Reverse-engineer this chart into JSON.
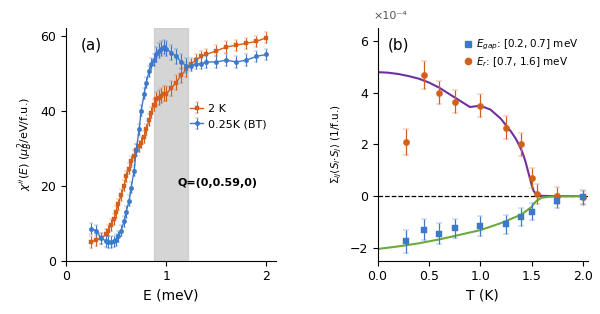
{
  "panel_a": {
    "label": "(a)",
    "xlabel": "E (meV)",
    "xlim": [
      0,
      2.1
    ],
    "ylim": [
      0,
      62
    ],
    "yticks": [
      0,
      20,
      40,
      60
    ],
    "xticks": [
      0,
      1,
      2
    ],
    "gray_band": [
      0.88,
      1.22
    ],
    "legend_entries": [
      "0.25K (BT)",
      "2 K"
    ],
    "color_bt": "#3E78C8",
    "color_2k": "#D2601A",
    "Q_label": "Q=(0,0.59,0)",
    "bt_data": {
      "x": [
        0.25,
        0.3,
        0.35,
        0.4,
        0.42,
        0.45,
        0.48,
        0.5,
        0.52,
        0.55,
        0.58,
        0.6,
        0.63,
        0.65,
        0.68,
        0.7,
        0.73,
        0.75,
        0.78,
        0.8,
        0.83,
        0.85,
        0.88,
        0.9,
        0.93,
        0.95,
        0.98,
        1.0,
        1.05,
        1.1,
        1.15,
        1.2,
        1.25,
        1.3,
        1.35,
        1.4,
        1.5,
        1.6,
        1.7,
        1.8,
        1.9,
        2.0
      ],
      "y": [
        8.5,
        8.0,
        6.0,
        5.2,
        5.0,
        5.0,
        5.2,
        5.5,
        6.5,
        8.0,
        10.5,
        13.0,
        16.0,
        19.5,
        24.0,
        29.5,
        35.0,
        40.0,
        44.5,
        47.5,
        50.5,
        52.5,
        53.5,
        55.0,
        56.0,
        56.5,
        57.0,
        56.5,
        55.5,
        54.5,
        53.0,
        52.0,
        52.0,
        52.5,
        52.5,
        53.0,
        53.0,
        53.5,
        53.0,
        53.5,
        54.5,
        55.0
      ],
      "yerr": [
        1.5,
        1.5,
        1.5,
        1.5,
        1.5,
        1.5,
        1.5,
        1.5,
        1.5,
        1.5,
        1.5,
        1.5,
        1.5,
        1.5,
        1.5,
        1.5,
        1.5,
        1.5,
        1.5,
        1.5,
        1.5,
        1.5,
        1.5,
        2.0,
        2.0,
        2.0,
        2.0,
        2.0,
        2.0,
        2.0,
        2.0,
        2.0,
        1.5,
        1.5,
        1.5,
        1.5,
        1.5,
        1.5,
        1.5,
        1.5,
        1.5,
        1.5
      ]
    },
    "twok_data": {
      "x": [
        0.25,
        0.3,
        0.35,
        0.4,
        0.42,
        0.45,
        0.48,
        0.5,
        0.52,
        0.55,
        0.58,
        0.6,
        0.63,
        0.65,
        0.68,
        0.7,
        0.73,
        0.75,
        0.78,
        0.8,
        0.83,
        0.85,
        0.88,
        0.9,
        0.93,
        0.95,
        0.98,
        1.0,
        1.05,
        1.1,
        1.15,
        1.2,
        1.25,
        1.3,
        1.35,
        1.4,
        1.5,
        1.6,
        1.7,
        1.8,
        1.9,
        2.0
      ],
      "y": [
        5.0,
        5.5,
        6.0,
        7.0,
        8.0,
        9.5,
        11.0,
        13.0,
        15.0,
        17.5,
        20.0,
        22.5,
        24.5,
        26.5,
        28.0,
        29.5,
        30.5,
        31.5,
        33.0,
        35.0,
        37.5,
        39.5,
        41.5,
        43.0,
        43.5,
        44.0,
        44.5,
        44.5,
        46.0,
        47.5,
        49.5,
        51.0,
        52.5,
        53.5,
        54.5,
        55.0,
        56.0,
        57.0,
        57.5,
        58.0,
        58.5,
        59.5
      ],
      "yerr": [
        1.5,
        1.5,
        1.5,
        1.5,
        1.5,
        1.5,
        1.5,
        1.5,
        1.5,
        1.5,
        1.5,
        1.5,
        1.5,
        1.5,
        1.5,
        1.5,
        1.5,
        1.5,
        1.5,
        1.5,
        1.5,
        1.5,
        1.5,
        2.0,
        2.0,
        2.0,
        2.0,
        2.0,
        2.0,
        2.0,
        2.0,
        2.0,
        1.5,
        1.5,
        1.5,
        1.5,
        1.5,
        1.5,
        1.5,
        1.5,
        1.5,
        1.5
      ]
    }
  },
  "panel_b": {
    "label": "(b)",
    "xlabel": "T (K)",
    "xlim": [
      0,
      2.05
    ],
    "ylim": [
      -2.5,
      6.5
    ],
    "yticks": [
      -2,
      0,
      2,
      4,
      6
    ],
    "xticks": [
      0,
      0.5,
      1.0,
      1.5,
      2.0
    ],
    "scale_label": "×10⁻⁴",
    "color_orange": "#D2601A",
    "color_blue": "#3E78C8",
    "color_fit_purple": "#7030A0",
    "color_fit_green": "#6AAB3C",
    "orange_data": {
      "x": [
        0.28,
        0.45,
        0.6,
        0.75,
        1.0,
        1.25,
        1.4,
        1.5,
        1.55,
        1.75,
        2.0
      ],
      "y": [
        2.1,
        4.7,
        4.0,
        3.65,
        3.5,
        2.65,
        2.0,
        0.7,
        0.08,
        0.02,
        -0.05
      ],
      "yerr": [
        0.5,
        0.55,
        0.45,
        0.45,
        0.45,
        0.45,
        0.45,
        0.4,
        0.38,
        0.32,
        0.3
      ]
    },
    "blue_data": {
      "x": [
        0.28,
        0.45,
        0.6,
        0.75,
        1.0,
        1.25,
        1.4,
        1.5,
        1.75,
        2.0
      ],
      "y": [
        -1.75,
        -1.3,
        -1.45,
        -1.25,
        -1.15,
        -1.1,
        -0.8,
        -0.6,
        -0.2,
        -0.05
      ],
      "yerr": [
        0.45,
        0.42,
        0.4,
        0.38,
        0.38,
        0.38,
        0.35,
        0.32,
        0.28,
        0.25
      ]
    },
    "fit_purple_x": [
      0.0,
      0.1,
      0.2,
      0.3,
      0.4,
      0.5,
      0.6,
      0.7,
      0.8,
      0.9,
      1.0,
      1.1,
      1.2,
      1.3,
      1.35,
      1.4,
      1.42,
      1.44,
      1.46,
      1.48,
      1.5,
      1.52,
      1.55,
      1.6,
      1.7,
      1.8,
      1.9,
      2.0
    ],
    "fit_purple_y": [
      4.8,
      4.78,
      4.73,
      4.65,
      4.55,
      4.4,
      4.2,
      3.95,
      3.7,
      3.45,
      3.5,
      3.35,
      3.0,
      2.5,
      2.2,
      1.8,
      1.6,
      1.35,
      1.05,
      0.75,
      0.45,
      0.2,
      0.05,
      0.01,
      0.0,
      0.0,
      0.0,
      0.0
    ],
    "fit_green_x": [
      0.0,
      0.2,
      0.4,
      0.6,
      0.8,
      1.0,
      1.2,
      1.4,
      1.5,
      1.52,
      1.55,
      1.6,
      1.7,
      1.8,
      2.0
    ],
    "fit_green_y": [
      -2.05,
      -1.95,
      -1.83,
      -1.68,
      -1.5,
      -1.32,
      -1.05,
      -0.72,
      -0.42,
      -0.3,
      -0.18,
      -0.06,
      -0.02,
      -0.01,
      0.0
    ]
  }
}
